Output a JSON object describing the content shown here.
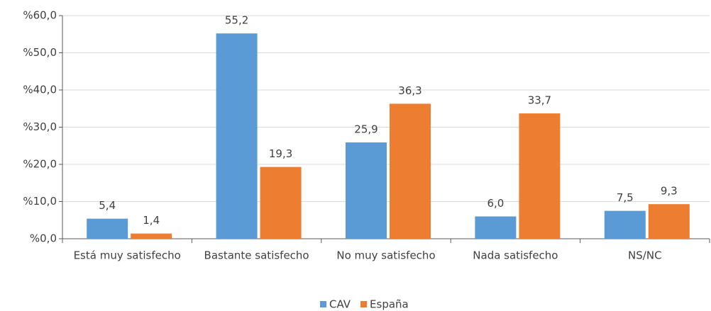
{
  "chart_data": {
    "type": "bar",
    "categories": [
      "Está muy satisfecho",
      "Bastante satisfecho",
      "No muy satisfecho",
      "Nada satisfecho",
      "NS/NC"
    ],
    "series": [
      {
        "name": "CAV",
        "color": "#5b9bd5",
        "values": [
          5.4,
          55.2,
          25.9,
          6.0,
          7.5
        ],
        "value_labels": [
          "5,4",
          "55,2",
          "25,9",
          "6,0",
          "7,5"
        ]
      },
      {
        "name": "España",
        "color": "#ed7d31",
        "values": [
          1.4,
          19.3,
          36.3,
          33.7,
          9.3
        ],
        "value_labels": [
          "1,4",
          "19,3",
          "36,3",
          "33,7",
          "9,3"
        ]
      }
    ],
    "ylim": [
      0,
      60
    ],
    "yticks": [
      {
        "value": 0,
        "label": "%0,0"
      },
      {
        "value": 10,
        "label": "%10,0"
      },
      {
        "value": 20,
        "label": "%20,0"
      },
      {
        "value": 30,
        "label": "%30,0"
      },
      {
        "value": 40,
        "label": "%40,0"
      },
      {
        "value": 50,
        "label": "%50,0"
      },
      {
        "value": 60,
        "label": "%60,0"
      }
    ],
    "grid": true,
    "legend": "bottom"
  }
}
